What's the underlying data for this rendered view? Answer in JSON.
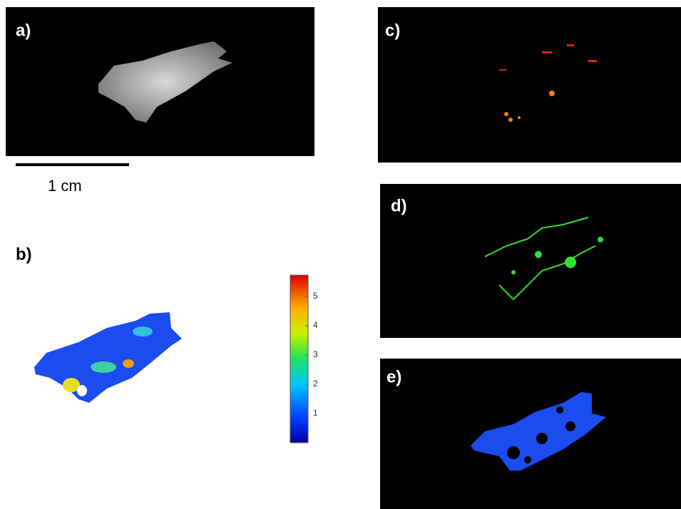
{
  "panels": {
    "a": "a)",
    "b": "b)",
    "c": "c)",
    "d": "d)",
    "e": "e)"
  },
  "scale_bar": {
    "label": "1 cm"
  },
  "colorbar": {
    "lim": [
      0,
      5.73
    ],
    "ticks": [
      1,
      2,
      3,
      4,
      5
    ]
  }
}
